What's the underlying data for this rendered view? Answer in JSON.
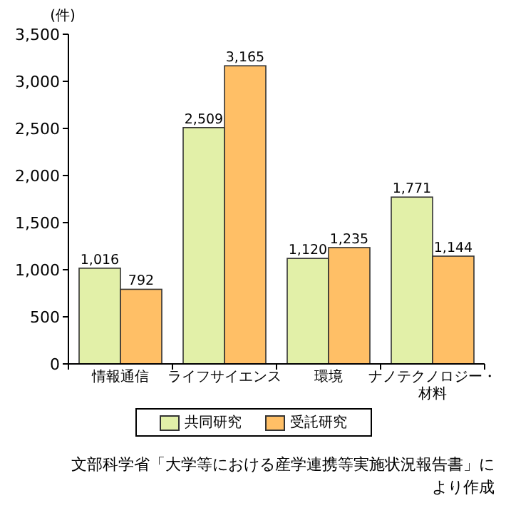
{
  "chart_data": {
    "type": "bar",
    "ylabel": "(件)",
    "categories": [
      "情報通信",
      "ライフサイエンス",
      "環境",
      "ナノテクノロジー・材料"
    ],
    "series": [
      {
        "name": "共同研究",
        "color": "#e2f0a8",
        "values": [
          1016,
          2509,
          1120,
          1771
        ],
        "value_labels": [
          "1,016",
          "2,509",
          "1,120",
          "1,771"
        ]
      },
      {
        "name": "受託研究",
        "color": "#ffbf66",
        "values": [
          792,
          3165,
          1235,
          1144
        ],
        "value_labels": [
          "792",
          "3,165",
          "1,235",
          "1,144"
        ]
      }
    ],
    "ylim": [
      0,
      3500
    ],
    "yticks": [
      {
        "value": 0,
        "label": "0"
      },
      {
        "value": 500,
        "label": "500"
      },
      {
        "value": 1000,
        "label": "1,000"
      },
      {
        "value": 1500,
        "label": "1,500"
      },
      {
        "value": 2000,
        "label": "2,000"
      },
      {
        "value": 2500,
        "label": "2,500"
      },
      {
        "value": 3000,
        "label": "3,000"
      },
      {
        "value": 3500,
        "label": "3,500"
      }
    ],
    "grid": false,
    "legend": "bottom",
    "annotations": [
      "文部科学省「大学等における産学連携等実施状況報告書」により作成"
    ]
  }
}
